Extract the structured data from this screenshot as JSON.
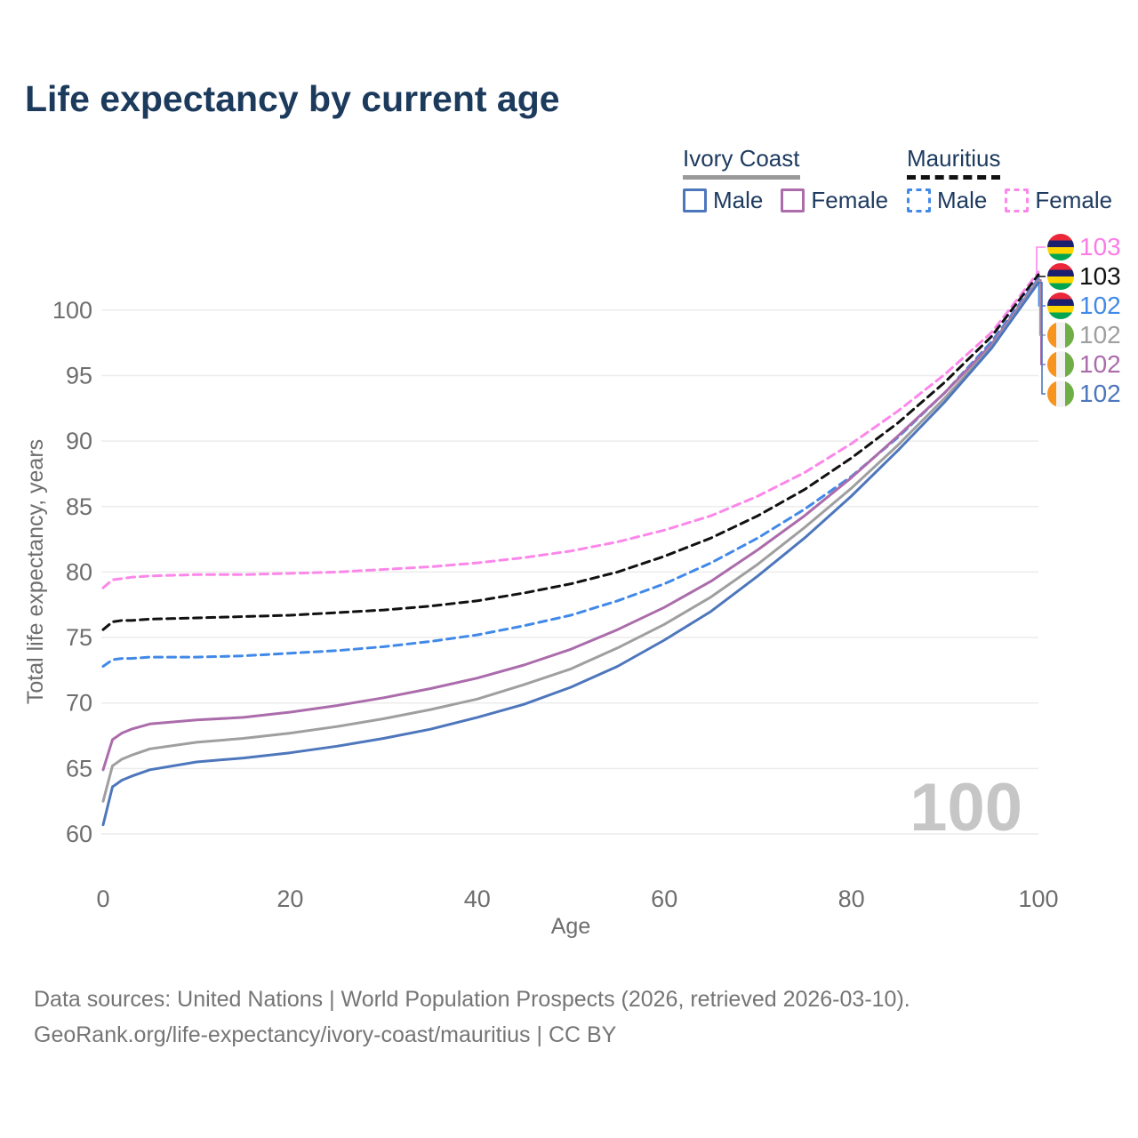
{
  "title": "Life expectancy by current age",
  "legend": {
    "groups": [
      {
        "name": "Ivory Coast",
        "line_style": "solid",
        "underline_color": "#9a9a9a",
        "items": [
          {
            "label": "Male",
            "color": "#4d76bc",
            "dashed": false
          },
          {
            "label": "Female",
            "color": "#ab6cab",
            "dashed": false
          }
        ]
      },
      {
        "name": "Mauritius",
        "line_style": "dashed",
        "underline_color": "#111111",
        "items": [
          {
            "label": "Male",
            "color": "#4189e8",
            "dashed": true
          },
          {
            "label": "Female",
            "color": "#fc87ea",
            "dashed": true
          }
        ]
      }
    ]
  },
  "watermark": "100",
  "footer": {
    "line1": "Data sources: United Nations | World Population Prospects (2026, retrieved 2026-03-10).",
    "line2": "GeoRank.org/life-expectancy/ivory-coast/mauritius | CC BY"
  },
  "end_labels": [
    {
      "value": "103",
      "color": "#fa7ce6",
      "flag": "mauritius",
      "series": "Mauritius Female"
    },
    {
      "value": "103",
      "color": "#111111",
      "flag": "mauritius",
      "series": "Mauritius Total"
    },
    {
      "value": "102",
      "color": "#4189e8",
      "flag": "mauritius",
      "series": "Mauritius Male"
    },
    {
      "value": "102",
      "color": "#9f9f9f",
      "flag": "ivory-coast",
      "series": "Ivory Coast Total"
    },
    {
      "value": "102",
      "color": "#ab6cab",
      "flag": "ivory-coast",
      "series": "Ivory Coast Female"
    },
    {
      "value": "102",
      "color": "#4d76bc",
      "flag": "ivory-coast",
      "series": "Ivory Coast Male"
    }
  ],
  "chart_data": {
    "type": "line",
    "title": "Life expectancy by current age",
    "xlabel": "Age",
    "ylabel": "Total life expectancy, years",
    "xlim": [
      0,
      100
    ],
    "ylim": [
      60,
      100
    ],
    "xticks": [
      0,
      20,
      40,
      60,
      80,
      100
    ],
    "yticks": [
      60,
      65,
      70,
      75,
      80,
      85,
      90,
      95,
      100
    ],
    "grid": true,
    "legend_position": "top-right",
    "ages": [
      0,
      1,
      2,
      3,
      5,
      10,
      15,
      20,
      25,
      30,
      35,
      40,
      45,
      50,
      55,
      60,
      65,
      70,
      75,
      80,
      85,
      90,
      95,
      100
    ],
    "series": [
      {
        "name": "Mauritius Female",
        "country": "Mauritius",
        "sex": "Female",
        "color": "#fc87ea",
        "dashed": true,
        "label_row": 0,
        "values": [
          78.8,
          79.4,
          79.5,
          79.6,
          79.7,
          79.8,
          79.8,
          79.9,
          80.0,
          80.2,
          80.4,
          80.7,
          81.1,
          81.6,
          82.3,
          83.2,
          84.3,
          85.8,
          87.6,
          89.8,
          92.3,
          95.1,
          98.3,
          102.9
        ]
      },
      {
        "name": "Mauritius Total",
        "country": "Mauritius",
        "sex": "Both",
        "color": "#111111",
        "dashed": true,
        "label_row": 1,
        "values": [
          75.6,
          76.2,
          76.3,
          76.3,
          76.4,
          76.5,
          76.6,
          76.7,
          76.9,
          77.1,
          77.4,
          77.8,
          78.4,
          79.1,
          80.0,
          81.2,
          82.6,
          84.3,
          86.3,
          88.7,
          91.4,
          94.5,
          98.0,
          102.7
        ]
      },
      {
        "name": "Mauritius Male",
        "country": "Mauritius",
        "sex": "Male",
        "color": "#4189e8",
        "dashed": true,
        "label_row": 2,
        "values": [
          72.8,
          73.3,
          73.4,
          73.4,
          73.5,
          73.5,
          73.6,
          73.8,
          74.0,
          74.3,
          74.7,
          75.2,
          75.9,
          76.7,
          77.8,
          79.1,
          80.7,
          82.6,
          84.8,
          87.3,
          90.3,
          93.7,
          97.6,
          102.4
        ]
      },
      {
        "name": "Ivory Coast Female",
        "country": "Ivory Coast",
        "sex": "Female",
        "color": "#ab6cab",
        "dashed": false,
        "label_row": 4,
        "values": [
          64.9,
          67.2,
          67.7,
          68.0,
          68.4,
          68.7,
          68.9,
          69.3,
          69.8,
          70.4,
          71.1,
          71.9,
          72.9,
          74.1,
          75.6,
          77.3,
          79.3,
          81.7,
          84.3,
          87.2,
          90.4,
          93.7,
          97.4,
          102.3
        ]
      },
      {
        "name": "Ivory Coast Total",
        "country": "Ivory Coast",
        "sex": "Both",
        "color": "#9f9f9f",
        "dashed": false,
        "label_row": 3,
        "values": [
          62.5,
          65.2,
          65.7,
          66.0,
          66.5,
          67.0,
          67.3,
          67.7,
          68.2,
          68.8,
          69.5,
          70.3,
          71.4,
          72.6,
          74.2,
          76.0,
          78.1,
          80.6,
          83.4,
          86.4,
          89.7,
          93.3,
          97.2,
          102.2
        ]
      },
      {
        "name": "Ivory Coast Male",
        "country": "Ivory Coast",
        "sex": "Male",
        "color": "#4d76bc",
        "dashed": false,
        "label_row": 5,
        "values": [
          60.7,
          63.6,
          64.1,
          64.4,
          64.9,
          65.5,
          65.8,
          66.2,
          66.7,
          67.3,
          68.0,
          68.9,
          69.9,
          71.2,
          72.8,
          74.8,
          77.0,
          79.7,
          82.6,
          85.8,
          89.3,
          93.0,
          97.1,
          102.1
        ]
      }
    ]
  }
}
